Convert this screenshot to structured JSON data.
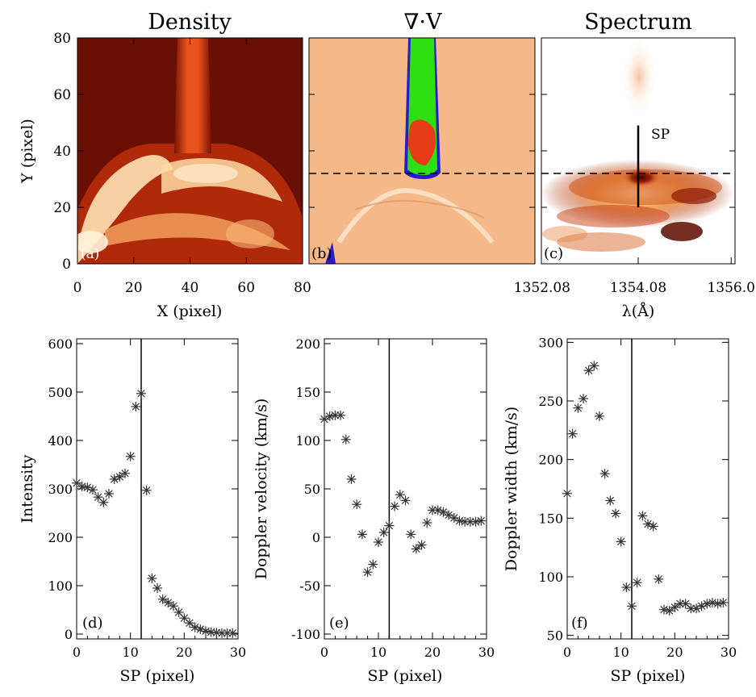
{
  "colors": {
    "density_dark": "#5a0a00",
    "density_mid": "#b82a08",
    "density_bright": "#ffe2b4",
    "div_background": "#f5b888",
    "div_green": "#2ee012",
    "div_red": "#e83c18",
    "div_blue": "#2a1cc8",
    "spectrum_background": "#ffffff",
    "spectrum_core": "#3a0500",
    "marker_color": "#333333"
  },
  "chart_data": [
    {
      "id": "a",
      "type": "heatmap",
      "title": "Density",
      "panel_label": "(a)",
      "xlabel": "X (pixel)",
      "ylabel": "Y (pixel)",
      "xlim": [
        0,
        80
      ],
      "ylim": [
        0,
        80
      ],
      "xticks": [
        "0",
        "20",
        "40",
        "60",
        "80"
      ],
      "yticks": [
        "0",
        "20",
        "40",
        "60",
        "80"
      ],
      "colormap": "dark red to light yellow"
    },
    {
      "id": "b",
      "type": "heatmap",
      "title": "∇·V",
      "panel_label": "(b)",
      "xlim": [
        0,
        80
      ],
      "ylim": [
        0,
        80
      ],
      "hline_y": 32,
      "colormap": "orange background; green / red / blue contours"
    },
    {
      "id": "c",
      "type": "heatmap",
      "title": "Spectrum",
      "panel_label": "(c)",
      "xlabel": "λ(Å)",
      "xlim": [
        1352.08,
        1356.08
      ],
      "ylim": [
        0,
        80
      ],
      "xticks": [
        "1352.08",
        "1354.08",
        "1356.0"
      ],
      "hline_y": 32,
      "annotation": "SP",
      "sp_line": {
        "x": 1354.08,
        "y_range": [
          20,
          49
        ]
      },
      "colormap": "white to dark red"
    },
    {
      "id": "d",
      "type": "scatter",
      "panel_label": "(d)",
      "xlabel": "SP (pixel)",
      "ylabel": "Intensity",
      "xlim": [
        0,
        30
      ],
      "ylim": [
        -10,
        610
      ],
      "xticks": [
        0,
        10,
        20,
        30
      ],
      "yticks": [
        0,
        100,
        200,
        300,
        400,
        500,
        600
      ],
      "vline_x": 12,
      "marker": "asterisk",
      "x": [
        0,
        1,
        2,
        3,
        4,
        5,
        6,
        7,
        8,
        9,
        10,
        11,
        12,
        13,
        14,
        15,
        16,
        17,
        18,
        19,
        20,
        21,
        22,
        23,
        24,
        25,
        26,
        27,
        28,
        29
      ],
      "y": [
        312,
        305,
        303,
        298,
        283,
        272,
        290,
        320,
        325,
        332,
        367,
        470,
        497,
        297,
        115,
        95,
        72,
        65,
        58,
        45,
        33,
        23,
        14,
        10,
        6,
        4,
        3,
        2,
        2,
        2
      ]
    },
    {
      "id": "e",
      "type": "scatter",
      "panel_label": "(e)",
      "xlabel": "SP (pixel)",
      "ylabel": "Doppler velocity (km/s)",
      "xlim": [
        0,
        30
      ],
      "ylim": [
        -105,
        205
      ],
      "xticks": [
        0,
        10,
        20,
        30
      ],
      "yticks": [
        -100,
        -50,
        0,
        50,
        100,
        150,
        200
      ],
      "vline_x": 12,
      "marker": "asterisk",
      "x": [
        0,
        1,
        2,
        3,
        4,
        5,
        6,
        7,
        8,
        9,
        10,
        11,
        12,
        13,
        14,
        15,
        16,
        17,
        18,
        19,
        20,
        21,
        22,
        23,
        24,
        25,
        26,
        27,
        28,
        29
      ],
      "y": [
        122,
        125,
        126,
        126,
        101,
        60,
        34,
        3,
        -36,
        -28,
        -5,
        5,
        12,
        32,
        44,
        38,
        3,
        -12,
        -8,
        15,
        28,
        28,
        26,
        23,
        20,
        17,
        16,
        16,
        16,
        17
      ]
    },
    {
      "id": "f",
      "type": "scatter",
      "panel_label": "(f)",
      "xlabel": "SP (pixel)",
      "ylabel": "Doppler width (km/s)",
      "xlim": [
        0,
        30
      ],
      "ylim": [
        47,
        303
      ],
      "xticks": [
        0,
        10,
        20,
        30
      ],
      "yticks": [
        50,
        100,
        150,
        200,
        250,
        300
      ],
      "vline_x": 12,
      "marker": "asterisk",
      "x": [
        0,
        1,
        2,
        3,
        4,
        5,
        6,
        7,
        8,
        9,
        10,
        11,
        12,
        13,
        14,
        15,
        16,
        17,
        18,
        19,
        20,
        21,
        22,
        23,
        24,
        25,
        26,
        27,
        28,
        29
      ],
      "y": [
        171,
        222,
        244,
        252,
        276,
        280,
        237,
        188,
        165,
        154,
        130,
        91,
        75,
        95,
        152,
        145,
        143,
        98,
        72,
        71,
        74,
        77,
        77,
        73,
        73,
        75,
        77,
        78,
        77,
        78
      ]
    }
  ]
}
